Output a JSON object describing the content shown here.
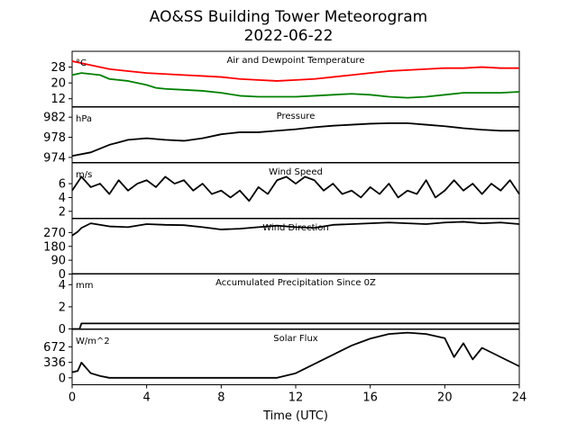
{
  "title": "AO&SS Building Tower Meteorogram",
  "subtitle": "2022-06-22",
  "xlabel": "Time (UTC)",
  "x_ticks": [
    0,
    4,
    8,
    12,
    16,
    20,
    24
  ],
  "colors": {
    "temperature": "#ff0000",
    "dewpoint": "#008000",
    "default": "#000000"
  },
  "chart_data": [
    {
      "type": "line",
      "title": "Air and Dewpoint Temperature",
      "unit": "°C",
      "xlim": [
        0,
        24
      ],
      "ylim": [
        8,
        36
      ],
      "yticks": [
        12,
        20,
        28
      ],
      "series": [
        {
          "color_key": "temperature",
          "x": [
            0,
            0.5,
            1,
            2,
            3,
            4,
            5,
            6,
            7,
            8,
            9,
            10,
            11,
            12,
            13,
            14,
            15,
            16,
            17,
            18,
            19,
            20,
            21,
            22,
            23,
            24
          ],
          "y": [
            31,
            30,
            29,
            27,
            26,
            25,
            24.5,
            24,
            23.5,
            23,
            22,
            21.5,
            21,
            21.5,
            22,
            23,
            24,
            25,
            26,
            26.5,
            27,
            27.5,
            27.5,
            28,
            27.5,
            27.5
          ]
        },
        {
          "color_key": "dewpoint",
          "x": [
            0,
            0.5,
            1,
            1.5,
            2,
            3,
            4,
            4.5,
            5,
            6,
            7,
            8,
            9,
            10,
            11,
            12,
            13,
            14,
            15,
            16,
            17,
            18,
            19,
            20,
            21,
            22,
            23,
            24
          ],
          "y": [
            24,
            25,
            24.5,
            24,
            22,
            21,
            19,
            17.5,
            17,
            16.5,
            16,
            15,
            13.5,
            13,
            13,
            13,
            13.5,
            14,
            14.5,
            14,
            13,
            12.5,
            13,
            14,
            15,
            15,
            15,
            15.5
          ]
        }
      ]
    },
    {
      "type": "line",
      "title": "Pressure",
      "unit": "hPa",
      "xlim": [
        0,
        24
      ],
      "ylim": [
        973,
        984
      ],
      "yticks": [
        974,
        978,
        982
      ],
      "series": [
        {
          "x": [
            0,
            1,
            2,
            3,
            4,
            5,
            6,
            7,
            8,
            9,
            10,
            11,
            12,
            13,
            14,
            15,
            16,
            17,
            18,
            19,
            20,
            21,
            22,
            23,
            24
          ],
          "y": [
            974.3,
            975,
            976.5,
            977.5,
            977.8,
            977.5,
            977.3,
            977.8,
            978.6,
            979,
            979,
            979.3,
            979.6,
            980,
            980.3,
            980.5,
            980.7,
            980.8,
            980.8,
            980.5,
            980.2,
            979.8,
            979.5,
            979.3,
            979.3
          ]
        }
      ]
    },
    {
      "type": "line",
      "title": "Wind Speed",
      "unit": "m/s",
      "xlim": [
        0,
        24
      ],
      "ylim": [
        1,
        9
      ],
      "yticks": [
        2,
        4,
        6
      ],
      "series": [
        {
          "x": [
            0,
            0.5,
            1,
            1.5,
            2,
            2.5,
            3,
            3.5,
            4,
            4.5,
            5,
            5.5,
            6,
            6.5,
            7,
            7.5,
            8,
            8.5,
            9,
            9.5,
            10,
            10.5,
            11,
            11.5,
            12,
            12.5,
            13,
            13.5,
            14,
            14.5,
            15,
            15.5,
            16,
            16.5,
            17,
            17.5,
            18,
            18.5,
            19,
            19.5,
            20,
            20.5,
            21,
            21.5,
            22,
            22.5,
            23,
            23.5,
            24
          ],
          "y": [
            5,
            7,
            5.5,
            6,
            4.5,
            6.5,
            5,
            6,
            6.5,
            5.5,
            7,
            6,
            6.5,
            5,
            6,
            4.5,
            5,
            4,
            5,
            3.5,
            5.5,
            4.5,
            6.5,
            7,
            6,
            7,
            6.5,
            5,
            6,
            4.5,
            5,
            4,
            5.5,
            4.5,
            6,
            4,
            5,
            4.5,
            6.5,
            4,
            5,
            6.5,
            5,
            6,
            4.5,
            6,
            5,
            6.5,
            4.5
          ]
        }
      ]
    },
    {
      "type": "line",
      "title": "Wind Direction",
      "unit": "",
      "xlim": [
        0,
        24
      ],
      "ylim": [
        0,
        360
      ],
      "yticks": [
        0,
        90,
        180,
        270
      ],
      "series": [
        {
          "x": [
            0,
            0.3,
            0.5,
            1,
            2,
            3,
            4,
            5,
            6,
            7,
            8,
            9,
            10,
            11,
            12,
            13,
            14,
            15,
            16,
            17,
            18,
            19,
            20,
            21,
            22,
            23,
            24
          ],
          "y": [
            250,
            275,
            300,
            330,
            310,
            305,
            325,
            320,
            318,
            305,
            290,
            295,
            305,
            315,
            305,
            300,
            320,
            325,
            330,
            335,
            330,
            325,
            335,
            340,
            330,
            335,
            325
          ]
        }
      ]
    },
    {
      "type": "line",
      "title": "Accumulated Precipitation Since 0Z",
      "unit": "mm",
      "xlim": [
        0,
        24
      ],
      "ylim": [
        0,
        5
      ],
      "yticks": [
        0,
        2,
        4
      ],
      "series": [
        {
          "x": [
            0,
            0.4,
            0.5,
            24
          ],
          "y": [
            0,
            0,
            0.5,
            0.5
          ]
        }
      ]
    },
    {
      "type": "line",
      "title": "Solar Flux",
      "unit": "W/m^2",
      "xlim": [
        0,
        24
      ],
      "ylim": [
        -150,
        1050
      ],
      "yticks": [
        0,
        336,
        672
      ],
      "series": [
        {
          "x": [
            0,
            0.3,
            0.5,
            1,
            1.5,
            2,
            3,
            4,
            5,
            6,
            7,
            8,
            9,
            10,
            11,
            12,
            13,
            14,
            15,
            16,
            17,
            18,
            19,
            20,
            20.5,
            21,
            21.5,
            22,
            22.5,
            23,
            23.5,
            24
          ],
          "y": [
            120,
            150,
            330,
            100,
            40,
            0,
            0,
            0,
            0,
            0,
            0,
            0,
            0,
            0,
            0,
            100,
            300,
            500,
            700,
            850,
            950,
            980,
            950,
            860,
            450,
            750,
            400,
            650,
            550,
            450,
            350,
            250
          ]
        }
      ]
    }
  ]
}
